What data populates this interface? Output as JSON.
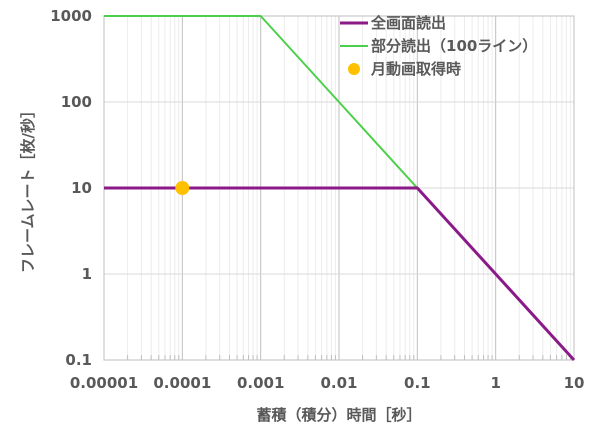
{
  "chart_data": {
    "type": "line",
    "xscale": "log",
    "yscale": "log",
    "xlim": [
      1e-05,
      10
    ],
    "ylim": [
      0.1,
      1000
    ],
    "xlabel": "蓄積（積分）時間［秒］",
    "ylabel": "フレームレート［枚/秒］",
    "x_tick_labels": [
      "0.00001",
      "0.0001",
      "0.001",
      "0.01",
      "0.1",
      "1",
      "10"
    ],
    "y_tick_labels": [
      "0.1",
      "1",
      "10",
      "100",
      "1000"
    ],
    "grid": true,
    "legend_position": "top-right",
    "series": [
      {
        "name": "全画面読出",
        "kind": "line",
        "color": "#8b1a89",
        "x": [
          1e-05,
          0.1,
          1,
          10
        ],
        "y": [
          10,
          10,
          1,
          0.1
        ]
      },
      {
        "name": "部分読出（100ライン）",
        "kind": "line",
        "color": "#4cd04c",
        "x": [
          1e-05,
          0.001,
          0.01,
          0.1,
          1,
          10
        ],
        "y": [
          1000,
          1000,
          100,
          10,
          1,
          0.1
        ]
      },
      {
        "name": "月動画取得時",
        "kind": "scatter",
        "color": "#ffc000",
        "x": [
          0.0001
        ],
        "y": [
          10
        ]
      }
    ]
  }
}
